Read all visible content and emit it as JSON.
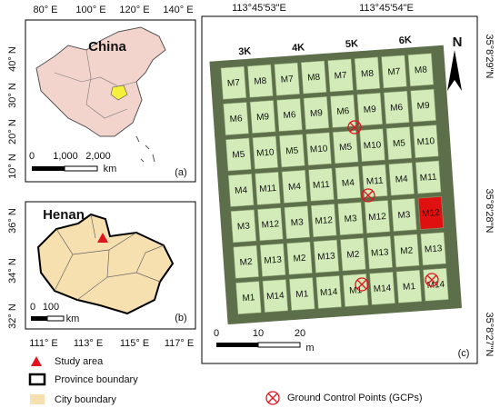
{
  "panel_a": {
    "region": "China",
    "lon_labels": [
      "80° E",
      "100° E",
      "120° E",
      "140° E"
    ],
    "lat_labels": [
      "40° N",
      "30° N",
      "20° N",
      "10° N"
    ],
    "scale_labels": [
      "0",
      "1,000",
      "2,000"
    ],
    "scale_unit": "km",
    "tag": "(a)"
  },
  "panel_b": {
    "region": "Henan",
    "lat_labels": [
      "36° N",
      "34° N",
      "32° N"
    ],
    "lon_labels": [
      "111° E",
      "113° E",
      "115° E",
      "117° E"
    ],
    "scale_labels": [
      "0",
      "100"
    ],
    "scale_unit": "km",
    "tag": "(b)"
  },
  "legend": [
    "Study area",
    "Province boundary",
    "City boundary"
  ],
  "panel_c": {
    "lon_labels": [
      "113°45'53\"E",
      "113°45'54\"E"
    ],
    "lat_labels": [
      "35°8'29\"N",
      "35°8'28\"N",
      "35°8'27\"N"
    ],
    "columns": [
      "3K",
      "4K",
      "5K",
      "6K"
    ],
    "cells": [
      [
        "M7",
        "M8",
        "M7",
        "M8",
        "M7",
        "M8",
        "M7",
        "M8"
      ],
      [
        "M6",
        "M9",
        "M6",
        "M9",
        "M6",
        "M9",
        "M6",
        "M9"
      ],
      [
        "M5",
        "M10",
        "M5",
        "M10",
        "M5",
        "M10",
        "M5",
        "M10"
      ],
      [
        "M4",
        "M11",
        "M4",
        "M11",
        "M4",
        "M11",
        "M4",
        "M11"
      ],
      [
        "M3",
        "M12",
        "M3",
        "M12",
        "M3",
        "M12",
        "M3",
        "M12"
      ],
      [
        "M2",
        "M13",
        "M2",
        "M13",
        "M2",
        "M13",
        "M2",
        "M13"
      ],
      [
        "M1",
        "M14",
        "M1",
        "M14",
        "M1",
        "M14",
        "M1",
        "M14"
      ]
    ],
    "north": "N",
    "scale_labels": [
      "0",
      "10",
      "20"
    ],
    "scale_unit": "m",
    "tag": "(c)",
    "gcp_legend": "Ground Control Points (GCPs)"
  }
}
